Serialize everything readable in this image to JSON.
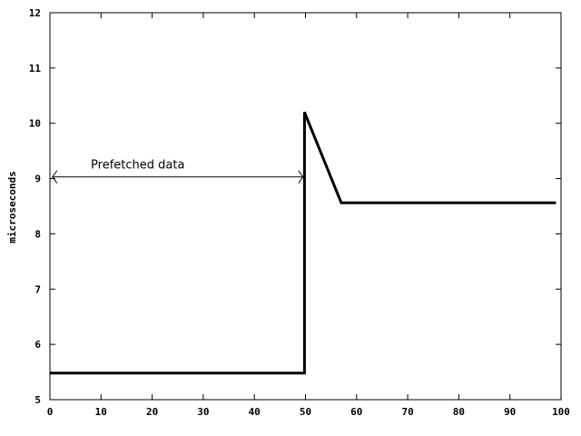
{
  "chart_data": {
    "type": "line",
    "title": "",
    "xlabel": "",
    "ylabel": "microseconds",
    "xlim": [
      0,
      100
    ],
    "ylim": [
      5,
      12
    ],
    "x_ticks": [
      "0",
      "10",
      "20",
      "30",
      "40",
      "50",
      "60",
      "70",
      "80",
      "90",
      "100"
    ],
    "y_ticks": [
      "5",
      "6",
      "7",
      "8",
      "9",
      "10",
      "11",
      "12"
    ],
    "grid": false,
    "legend": "none",
    "series": [
      {
        "points": [
          [
            0,
            5.48
          ],
          [
            49.8,
            5.48
          ],
          [
            49.8,
            10.2
          ],
          [
            57,
            8.56
          ],
          [
            99,
            8.56
          ]
        ],
        "color": "#000000"
      }
    ],
    "annotations": [
      {
        "text": "Prefetched data",
        "type": "double-arrow",
        "x_start": 0.5,
        "x_end": 49.5,
        "y": 9.03,
        "text_x": 8,
        "text_y": 9.25
      }
    ]
  }
}
